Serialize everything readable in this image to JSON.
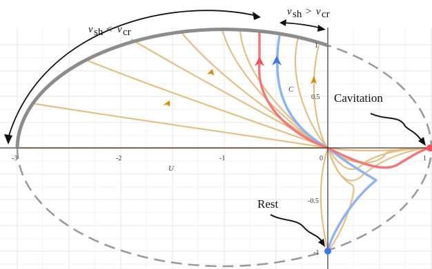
{
  "x_ticks": [
    "-3",
    "-2",
    "-1",
    "0",
    "1"
  ],
  "y_ticks": [
    "1",
    "0.5",
    "-0.5",
    "-1"
  ],
  "axis_label_u": "U",
  "axis_label_c": "C",
  "label_sub": {
    "v": "v",
    "sh": "sh",
    "cr": "cr",
    "lt": "<",
    "gt": ">"
  },
  "annotation_cavitation": "Cavitation",
  "annotation_rest": "Rest",
  "colors": {
    "grid": "#e4e4e4",
    "axis": "#333333",
    "outer_arc": "#8c8c8c",
    "dashed_ellipse": "#9a9a9a",
    "trajectory": "#e3bf86",
    "red_curve": "#f0777a",
    "blue_curve": "#8fb3f0",
    "red_point": "#f0525a",
    "blue_point": "#3d78e6",
    "arrow_orange": "#d98a00"
  }
}
